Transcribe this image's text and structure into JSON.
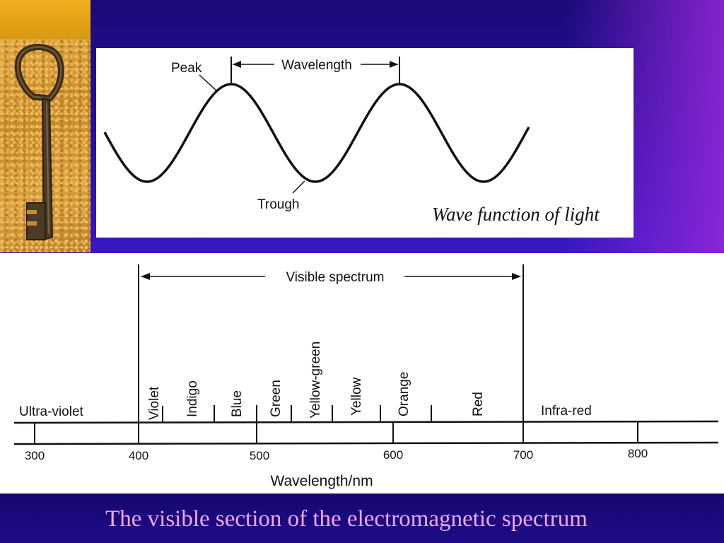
{
  "wave_diagram": {
    "peak_label": "Peak",
    "trough_label": "Trough",
    "wavelength_label": "Wavelength",
    "caption": "Wave function of light"
  },
  "spectrum_diagram": {
    "visible_label": "Visible spectrum",
    "axis_label": "Wavelength/nm",
    "left_region": "Ultra-violet",
    "right_region": "Infra-red",
    "ticks": [
      "300",
      "400",
      "500",
      "600",
      "700",
      "800"
    ],
    "bands": [
      "Violet",
      "Indigo",
      "Blue",
      "Green",
      "Yellow-green",
      "Yellow",
      "Orange",
      "Red"
    ]
  },
  "slide_caption": "The visible section of the electromagnetic spectrum"
}
